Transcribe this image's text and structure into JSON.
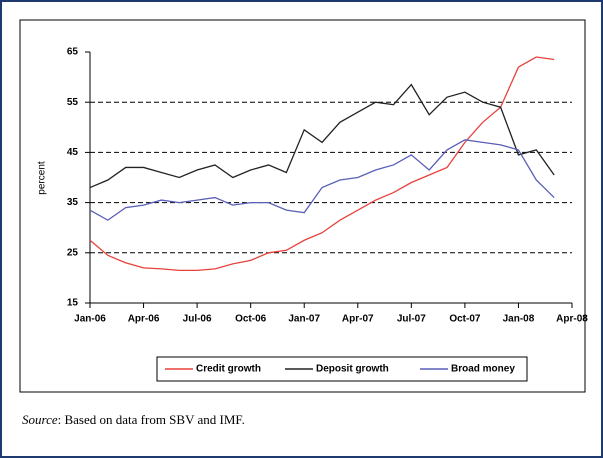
{
  "chart_data": {
    "type": "line",
    "ylabel": "percent",
    "categories": [
      "Jan-06",
      null,
      null,
      "Apr-06",
      null,
      null,
      "Jul-06",
      null,
      null,
      "Oct-06",
      null,
      null,
      "Jan-07",
      null,
      null,
      "Apr-07",
      null,
      null,
      "Jul-07",
      null,
      null,
      "Oct-07",
      null,
      null,
      "Jan-08",
      null,
      null,
      "Apr-08"
    ],
    "series": [
      {
        "name": "Credit growth",
        "color": "#e8413c",
        "values": [
          27.5,
          24.5,
          23,
          22,
          21.8,
          21.5,
          21.5,
          21.8,
          22.8,
          23.5,
          25,
          25.5,
          27.5,
          29,
          31.5,
          33.5,
          35.5,
          37,
          39,
          40.5,
          42,
          47,
          51,
          54,
          62,
          64,
          63.5,
          null
        ]
      },
      {
        "name": "Deposit growth",
        "color": "#222222",
        "values": [
          38,
          39.5,
          42,
          42,
          41,
          40,
          41.5,
          42.5,
          40,
          41.5,
          42.5,
          41,
          49.5,
          47,
          51,
          53,
          55,
          54.5,
          58.5,
          52.5,
          56,
          57,
          55,
          54,
          44.5,
          45.5,
          40.5,
          null
        ]
      },
      {
        "name": "Broad money",
        "color": "#5a5fb8",
        "values": [
          33.5,
          31.5,
          34,
          34.5,
          35.5,
          35,
          35.5,
          36,
          34.5,
          35,
          35,
          33.5,
          33,
          38,
          39.5,
          40,
          41.5,
          42.5,
          44.5,
          41.5,
          45.5,
          47.5,
          47,
          46.5,
          45.5,
          39.5,
          36,
          null
        ]
      }
    ],
    "ylim": [
      15,
      65
    ],
    "yticks": [
      15,
      25,
      35,
      45,
      55,
      65
    ],
    "grid": true,
    "source_label": "Source",
    "source_text": ": Based on data from SBV and IMF."
  }
}
